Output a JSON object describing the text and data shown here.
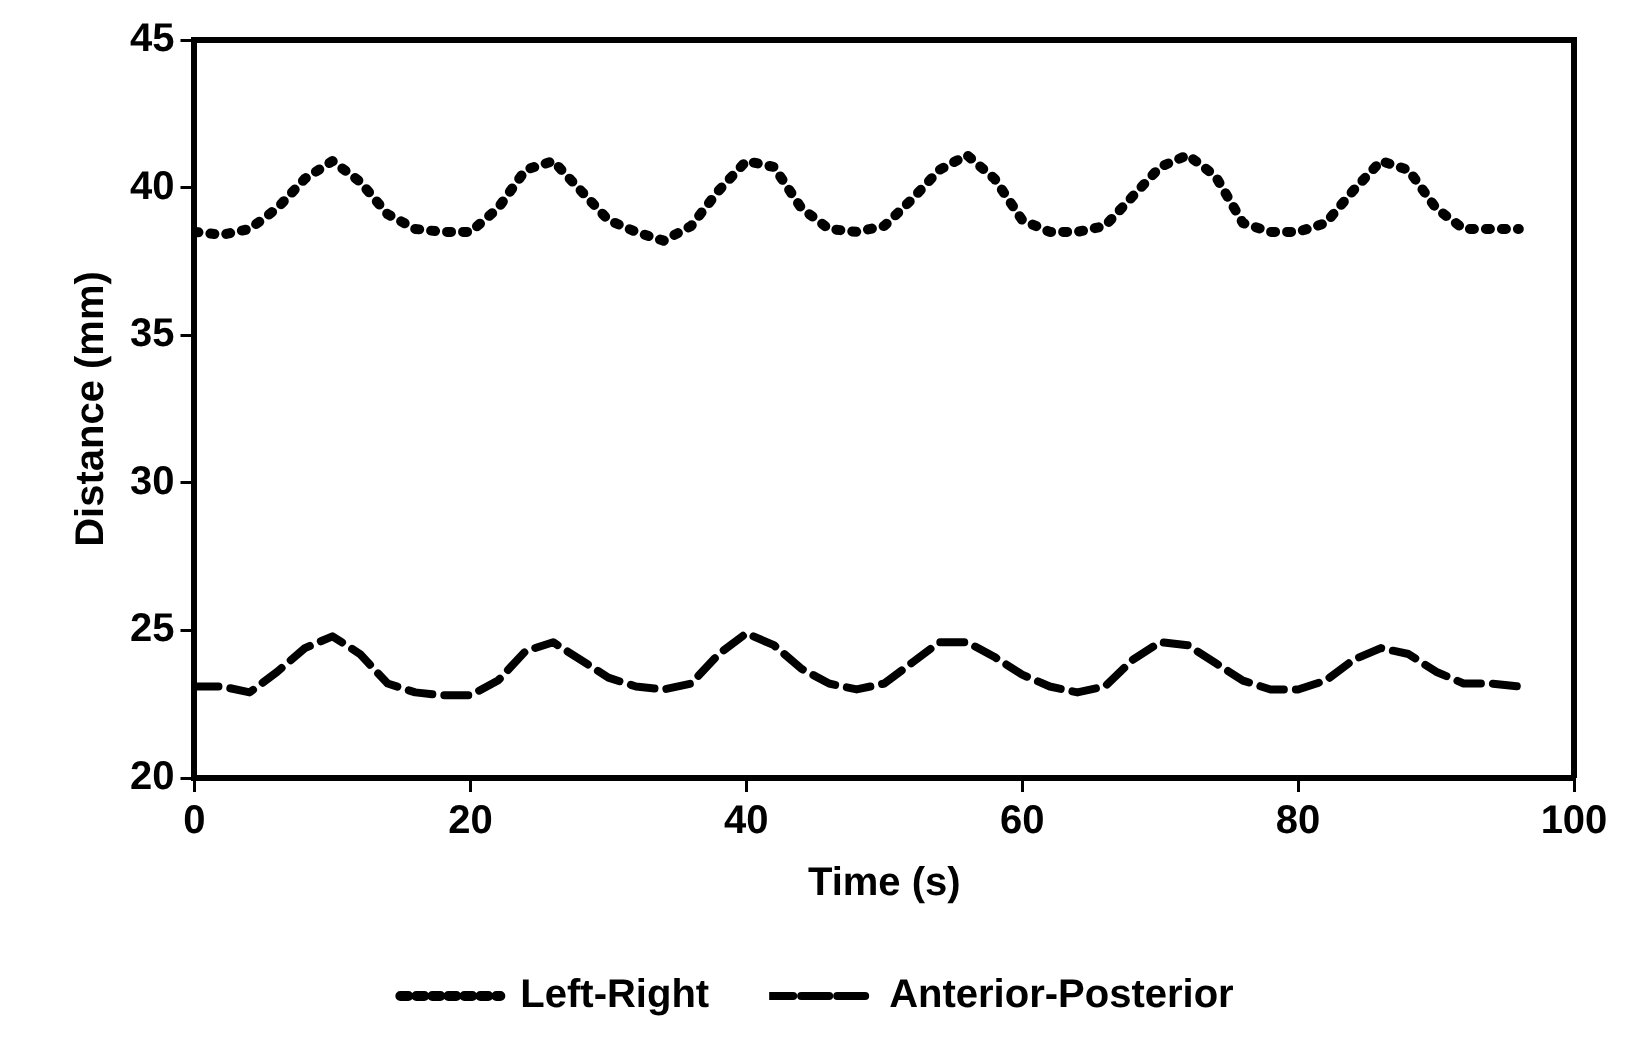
{
  "chart_data": {
    "type": "line",
    "xlabel": "Time (s)",
    "ylabel": "Distance (mm)",
    "xlim": [
      0,
      100
    ],
    "xticks": [
      0,
      20,
      40,
      60,
      80,
      100
    ],
    "ylim": [
      20,
      45
    ],
    "yticks": [
      20,
      25,
      30,
      35,
      40,
      45
    ],
    "grid": false,
    "legend": "bottom",
    "marker": "none",
    "x": [
      0,
      2,
      4,
      6,
      8,
      10,
      12,
      14,
      16,
      18,
      20,
      22,
      24,
      26,
      28,
      30,
      32,
      34,
      36,
      38,
      40,
      42,
      44,
      46,
      48,
      50,
      52,
      54,
      56,
      58,
      60,
      62,
      64,
      66,
      68,
      70,
      72,
      74,
      76,
      78,
      80,
      82,
      84,
      86,
      88,
      90,
      92,
      94,
      96
    ],
    "series": [
      {
        "name": "Left-Right",
        "color": "#000000",
        "line_style": "dotted",
        "values": [
          38.5,
          38.4,
          38.6,
          39.3,
          40.3,
          40.9,
          40.2,
          39.1,
          38.6,
          38.5,
          38.5,
          39.3,
          40.6,
          40.9,
          39.9,
          38.9,
          38.5,
          38.2,
          38.7,
          39.9,
          40.9,
          40.7,
          39.3,
          38.6,
          38.5,
          38.7,
          39.6,
          40.6,
          41.1,
          40.3,
          38.9,
          38.5,
          38.5,
          38.7,
          39.7,
          40.7,
          41.1,
          40.4,
          38.8,
          38.5,
          38.5,
          38.8,
          39.9,
          40.9,
          40.6,
          39.3,
          38.6,
          38.6,
          38.6
        ]
      },
      {
        "name": "Anterior-Posterior",
        "color": "#000000",
        "line_style": "dashed",
        "values": [
          23.1,
          23.1,
          22.9,
          23.6,
          24.4,
          24.8,
          24.2,
          23.2,
          22.9,
          22.8,
          22.8,
          23.3,
          24.3,
          24.6,
          24.0,
          23.4,
          23.1,
          23.0,
          23.2,
          24.2,
          24.9,
          24.5,
          23.7,
          23.2,
          23.0,
          23.2,
          23.9,
          24.6,
          24.6,
          24.1,
          23.5,
          23.1,
          22.9,
          23.1,
          24.0,
          24.6,
          24.5,
          23.9,
          23.3,
          23.0,
          23.0,
          23.3,
          24.0,
          24.4,
          24.2,
          23.6,
          23.2,
          23.2,
          23.1
        ]
      }
    ]
  }
}
